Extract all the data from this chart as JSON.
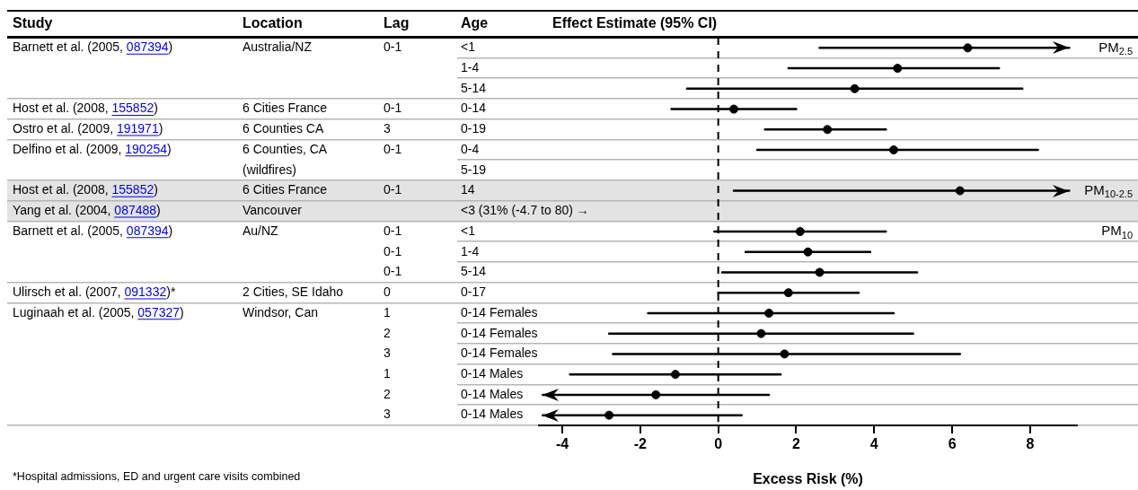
{
  "chart_data": {
    "type": "scatter",
    "orientation": "horizontal",
    "xlabel": "Excess Risk (%)",
    "categories": [
      "<1",
      "1-4",
      "5-14",
      "0-14",
      "0-19",
      "0-4",
      "5-19",
      "14",
      "<3 (31% (-4.7 to 80) →",
      "<1",
      "1-4",
      "5-14",
      "0-17",
      "0-14 Females",
      "0-14 Females",
      "0-14 Females",
      "0-14 Males",
      "0-14 Males",
      "0-14 Males"
    ],
    "values": [
      6.4,
      4.6,
      3.5,
      0.4,
      2.8,
      4.5,
      null,
      6.2,
      null,
      2.1,
      2.3,
      2.6,
      1.8,
      1.3,
      1.1,
      1.7,
      -1.1,
      -1.6,
      -2.8
    ],
    "errors": [
      [
        2.6,
        9.0
      ],
      [
        1.8,
        7.2
      ],
      [
        -0.8,
        7.8
      ],
      [
        -1.2,
        2.0
      ],
      [
        1.2,
        4.3
      ],
      [
        1.0,
        8.2
      ],
      null,
      [
        0.4,
        9.0
      ],
      null,
      [
        -0.1,
        4.3
      ],
      [
        0.7,
        3.9
      ],
      [
        0.1,
        5.1
      ],
      [
        0.0,
        3.6
      ],
      [
        -1.8,
        4.5
      ],
      [
        -2.8,
        5.0
      ],
      [
        -2.7,
        6.2
      ],
      [
        -3.8,
        1.6
      ],
      [
        -4.5,
        1.3
      ],
      [
        -4.5,
        0.6
      ]
    ],
    "color": "#000000",
    "marker": "circle",
    "xlim": [
      -4.6,
      9.2
    ],
    "xticks": [
      -4,
      -2,
      0,
      2,
      4,
      6,
      8
    ],
    "grid": "y",
    "legend": false,
    "ref_lines": [
      {
        "axis": "x",
        "value": 0,
        "line_style": "dashed",
        "color": "#000000"
      }
    ],
    "bands": [
      {
        "axis": "y",
        "from": "14",
        "to": "<3 (31% (-4.7 to 80) →",
        "color": "#e3e3e3"
      }
    ],
    "annotations": [
      "Study",
      "Location",
      "Lag",
      "Age",
      "Effect Estimate (95% CI)",
      "Barnett et al. (2005, 087394)",
      "Australia/NZ",
      "0-1",
      "PM$_{2.5}$",
      "Host et al. (2008, 155852)",
      "6 Cities France",
      "0-1",
      "Ostro et al. (2009, 191971)",
      "6 Counties CA",
      "3",
      "Delfino et al. (2009, 190254)",
      "6 Counties, CA",
      "(wildfires)",
      "0-1",
      "Host et al. (2008, 155852)",
      "6 Cities France",
      "0-1",
      "PM$_{10-2.5}$",
      "Yang et al. (2004, 087488)",
      "Vancouver",
      "Barnett et al. (2005, 087394)",
      "Au/NZ",
      "0-1",
      "0-1",
      "0-1",
      "PM$_{10}$",
      "Ulirsch et al. (2007, 091332)*",
      "2 Cities, SE Idaho",
      "0",
      "Luginaah et al. (2005, 057327)",
      "Windsor, Can",
      "1",
      "2",
      "3",
      "1",
      "2",
      "3",
      "*Hospital admissions, ED and urgent care visits combined"
    ]
  }
}
